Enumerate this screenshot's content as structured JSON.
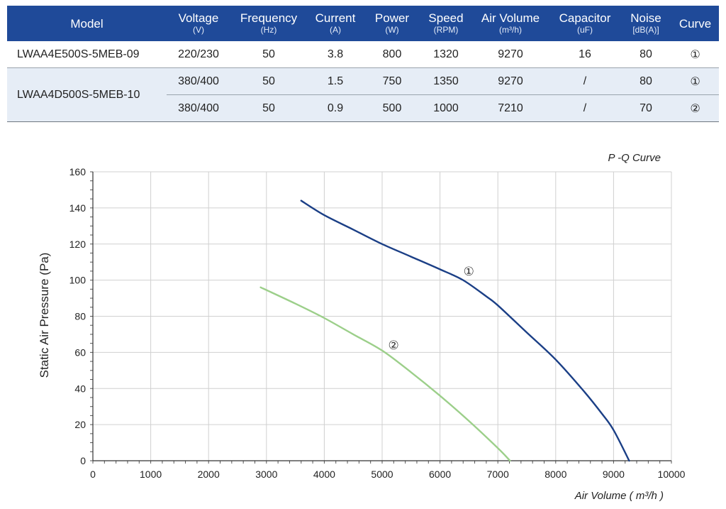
{
  "table": {
    "headers": [
      {
        "name": "Model",
        "unit": ""
      },
      {
        "name": "Voltage",
        "unit": "(V)"
      },
      {
        "name": "Frequency",
        "unit": "(Hz)"
      },
      {
        "name": "Current",
        "unit": "(A)"
      },
      {
        "name": "Power",
        "unit": "(W)"
      },
      {
        "name": "Speed",
        "unit": "(RPM)"
      },
      {
        "name": "Air Volume",
        "unit": "(m³/h)"
      },
      {
        "name": "Capacitor",
        "unit": "(uF)"
      },
      {
        "name": "Noise",
        "unit": "[dB(A)]"
      },
      {
        "name": "Curve",
        "unit": ""
      }
    ],
    "models": [
      {
        "model": "LWAA4E500S-5MEB-09",
        "rows": [
          [
            "220/230",
            "50",
            "3.8",
            "800",
            "1320",
            "9270",
            "16",
            "80",
            "①"
          ]
        ]
      },
      {
        "model": "LWAA4D500S-5MEB-10",
        "rows": [
          [
            "380/400",
            "50",
            "1.5",
            "750",
            "1350",
            "9270",
            "/",
            "80",
            "①"
          ],
          [
            "380/400",
            "50",
            "0.9",
            "500",
            "1000",
            "7210",
            "/",
            "70",
            "②"
          ]
        ]
      }
    ]
  },
  "chart_data": {
    "type": "line",
    "title": "P -Q Curve",
    "xlabel": "Air Volume ( m³/h )",
    "ylabel": "Static Air Pressure  (Pa)",
    "xlim": [
      0,
      10000
    ],
    "ylim": [
      0,
      160
    ],
    "x_ticks": [
      0,
      1000,
      2000,
      3000,
      4000,
      5000,
      6000,
      7000,
      8000,
      9000,
      10000
    ],
    "y_ticks": [
      0,
      20,
      40,
      60,
      80,
      100,
      120,
      140,
      160
    ],
    "grid": true,
    "colors": {
      "curve_1": "#1b3f86",
      "curve_2": "#9ccf8a"
    },
    "series": [
      {
        "name": "①",
        "x": [
          3600,
          4000,
          4500,
          5000,
          5500,
          6000,
          6400,
          6800,
          7000,
          7500,
          8000,
          8500,
          8800,
          9000,
          9270
        ],
        "y": [
          144,
          136,
          128,
          120,
          113,
          106,
          100,
          91,
          86,
          71,
          56,
          38,
          26,
          17,
          0
        ]
      },
      {
        "name": "②",
        "x": [
          2900,
          3500,
          4000,
          4500,
          5000,
          5500,
          6000,
          6500,
          7000,
          7210
        ],
        "y": [
          96,
          87,
          79,
          70,
          61,
          49,
          36,
          22,
          7,
          0
        ]
      }
    ],
    "annotations": [
      {
        "text": "①",
        "x": 6400,
        "y": 105
      },
      {
        "text": "②",
        "x": 5100,
        "y": 64
      }
    ]
  }
}
